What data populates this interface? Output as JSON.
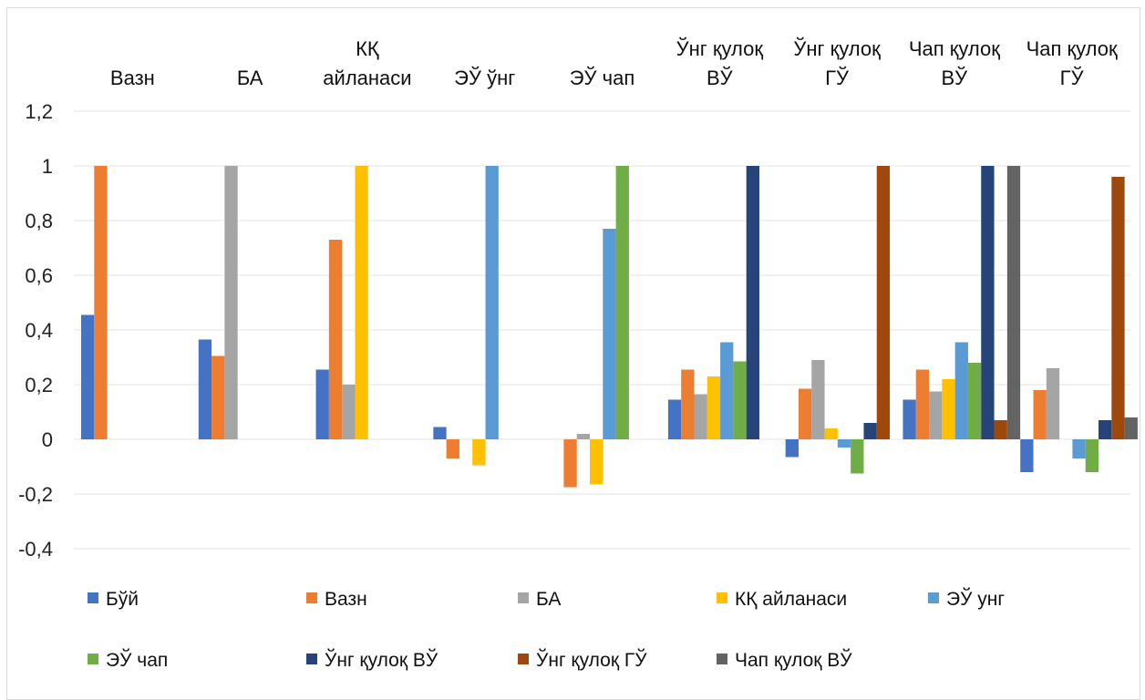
{
  "chart_data": {
    "type": "bar",
    "title": "",
    "xlabel": "",
    "ylabel": "",
    "ylim": [
      -0.4,
      1.2
    ],
    "yticks": [
      "1,2",
      "1",
      "0,8",
      "0,6",
      "0,4",
      "0,2",
      "0",
      "-0,2",
      "-0,4"
    ],
    "ytick_values": [
      1.2,
      1,
      0.8,
      0.6,
      0.4,
      0.2,
      0,
      -0.2,
      -0.4
    ],
    "grid": true,
    "legend_position": "bottom",
    "categories": [
      [
        "Вазн"
      ],
      [
        "БА"
      ],
      [
        "КҚ",
        "айланаси"
      ],
      [
        "ЭЎ ўнг"
      ],
      [
        "ЭЎ чап"
      ],
      [
        "Ўнг қулоқ",
        "ВЎ"
      ],
      [
        "Ўнг қулоқ",
        "ГЎ"
      ],
      [
        "Чап қулоқ",
        "ВЎ"
      ],
      [
        "Чап қулоқ",
        "ГЎ"
      ]
    ],
    "series": [
      {
        "name": "Бўй",
        "color": "#4472C4",
        "values": [
          0.455,
          0.365,
          0.255,
          0.045,
          null,
          0.145,
          -0.065,
          0.145,
          -0.12
        ]
      },
      {
        "name": "Вазн",
        "color": "#ED7D31",
        "values": [
          1,
          0.305,
          0.73,
          -0.07,
          -0.175,
          0.255,
          0.185,
          0.255,
          0.18
        ]
      },
      {
        "name": "БА",
        "color": "#A5A5A5",
        "values": [
          null,
          1,
          0.2,
          null,
          0.02,
          0.165,
          0.29,
          0.175,
          0.26
        ]
      },
      {
        "name": "КҚ айланаси",
        "color": "#FFC000",
        "values": [
          null,
          null,
          1,
          -0.095,
          -0.165,
          0.23,
          0.04,
          0.22,
          null
        ]
      },
      {
        "name": "ЭЎ унг",
        "color": "#5B9BD5",
        "values": [
          null,
          null,
          null,
          1,
          0.77,
          0.355,
          -0.03,
          0.355,
          -0.07
        ]
      },
      {
        "name": "ЭЎ чап",
        "color": "#70AD47",
        "values": [
          null,
          null,
          null,
          null,
          1,
          0.285,
          -0.125,
          0.28,
          -0.12
        ]
      },
      {
        "name": "Ўнг қулоқ ВЎ",
        "color": "#264478",
        "values": [
          null,
          null,
          null,
          null,
          null,
          1,
          0.06,
          1,
          0.07
        ]
      },
      {
        "name": "Ўнг қулоқ ГЎ",
        "color": "#9E480E",
        "values": [
          null,
          null,
          null,
          null,
          null,
          null,
          1,
          0.07,
          0.96
        ]
      },
      {
        "name": "Чап қулоқ ВЎ",
        "color": "#636363",
        "values": [
          null,
          null,
          null,
          null,
          null,
          null,
          null,
          1,
          0.08
        ]
      }
    ]
  }
}
